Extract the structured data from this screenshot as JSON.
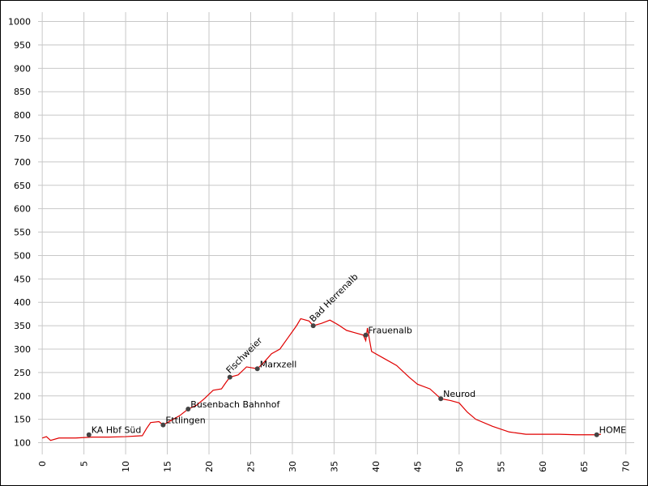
{
  "chart_data": {
    "type": "line",
    "color": "#e00000",
    "grid": true,
    "xlim": [
      -0.5,
      71
    ],
    "ylim": [
      75,
      1020
    ],
    "xticks": [
      0,
      5,
      10,
      15,
      20,
      25,
      30,
      35,
      40,
      45,
      50,
      55,
      60,
      65,
      70
    ],
    "yticks": [
      100,
      150,
      200,
      250,
      300,
      350,
      400,
      450,
      500,
      550,
      600,
      650,
      700,
      750,
      800,
      850,
      900,
      950,
      1000
    ],
    "x": [
      0,
      0.5,
      1,
      2,
      4,
      6,
      8,
      10,
      12,
      12.5,
      13,
      14,
      14.5,
      15.5,
      16.5,
      17.5,
      18.5,
      19.5,
      20.5,
      21.5,
      22,
      22.5,
      23.5,
      24.5,
      25.8,
      26.5,
      27.5,
      28.5,
      29.5,
      30.5,
      31,
      32,
      32.5,
      33.5,
      34.5,
      35.5,
      36.5,
      37.5,
      38.5,
      38.8,
      39,
      39.5,
      41,
      42.5,
      44,
      45,
      46.5,
      47.8,
      49,
      50,
      51,
      52,
      54,
      56,
      58,
      60,
      62,
      64,
      66.5,
      67
    ],
    "values": [
      110,
      113,
      105,
      110,
      110,
      112,
      112,
      113,
      115,
      130,
      143,
      145,
      138,
      148,
      158,
      172,
      180,
      195,
      212,
      215,
      228,
      240,
      245,
      262,
      258,
      270,
      290,
      300,
      325,
      350,
      365,
      360,
      350,
      355,
      362,
      352,
      340,
      335,
      330,
      318,
      345,
      295,
      280,
      265,
      240,
      225,
      215,
      194,
      190,
      185,
      165,
      150,
      135,
      123,
      118,
      118,
      118,
      117,
      117,
      118
    ],
    "waypoints": {
      "names": [
        "KA Hbf Süd",
        "Ettlingen",
        "Busenbach Bahnhof",
        "Fischweier",
        "Marxzell",
        "Bad Herrenalb",
        "Frauenalb",
        "Neurod",
        "HOME"
      ],
      "x": [
        5.6,
        14.5,
        17.5,
        22.5,
        25.8,
        32.5,
        38.8,
        47.8,
        66.5
      ],
      "values": [
        117,
        138,
        172,
        240,
        258,
        350,
        330,
        194,
        117
      ]
    }
  }
}
